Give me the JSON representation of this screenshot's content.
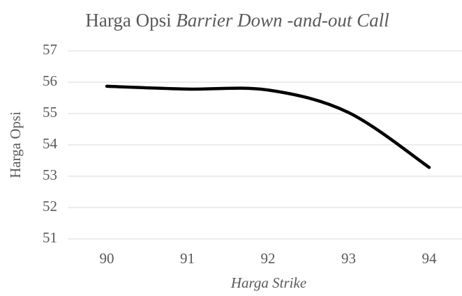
{
  "chart_data": {
    "type": "line",
    "title": [
      "Harga Opsi",
      "Barrier Down -and-out Call"
    ],
    "x_label": "Harga Strike",
    "y_label": "Harga Opsi",
    "categories": [
      "90",
      "91",
      "92",
      "93",
      "94"
    ],
    "series": [
      {
        "name": "Harga Opsi",
        "color": "#000000",
        "values": [
          55.87,
          55.78,
          55.75,
          55.03,
          53.28
        ]
      }
    ],
    "ylim": [
      51,
      57
    ],
    "yticks": [
      51,
      52,
      53,
      54,
      55,
      56,
      57
    ],
    "grid": true,
    "smooth": true
  }
}
